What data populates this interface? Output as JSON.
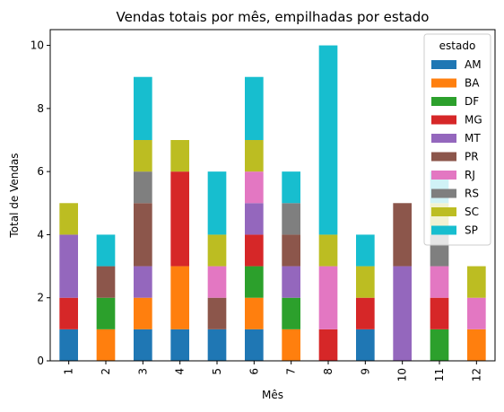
{
  "chart_data": {
    "type": "bar",
    "stacked": true,
    "title": "Vendas totais por mês, empilhadas por estado",
    "xlabel": "Mês",
    "ylabel": "Total de Vendas",
    "ylim": [
      0,
      10.5
    ],
    "yticks": [
      0,
      2,
      4,
      6,
      8,
      10
    ],
    "grid": false,
    "legend": {
      "title": "estado",
      "placement": "top-right"
    },
    "categories": [
      "1",
      "2",
      "3",
      "4",
      "5",
      "6",
      "7",
      "8",
      "9",
      "10",
      "11",
      "12"
    ],
    "series": [
      {
        "name": "AM",
        "color": "#1f77b4",
        "values": [
          1,
          0,
          1,
          1,
          1,
          1,
          0,
          0,
          1,
          0,
          0,
          0
        ]
      },
      {
        "name": "BA",
        "color": "#ff7f0e",
        "values": [
          0,
          1,
          1,
          2,
          0,
          1,
          1,
          0,
          0,
          0,
          0,
          1
        ]
      },
      {
        "name": "DF",
        "color": "#2ca02c",
        "values": [
          0,
          1,
          0,
          0,
          0,
          1,
          1,
          0,
          0,
          0,
          1,
          0
        ]
      },
      {
        "name": "MG",
        "color": "#d62728",
        "values": [
          1,
          0,
          0,
          3,
          0,
          1,
          0,
          1,
          1,
          0,
          1,
          0
        ]
      },
      {
        "name": "MT",
        "color": "#9467bd",
        "values": [
          2,
          0,
          1,
          0,
          0,
          1,
          1,
          0,
          0,
          3,
          0,
          0
        ]
      },
      {
        "name": "PR",
        "color": "#8c564b",
        "values": [
          0,
          1,
          2,
          0,
          1,
          0,
          1,
          0,
          0,
          2,
          0,
          0
        ]
      },
      {
        "name": "RJ",
        "color": "#e377c2",
        "values": [
          0,
          0,
          0,
          0,
          1,
          1,
          0,
          2,
          0,
          0,
          1,
          1
        ]
      },
      {
        "name": "RS",
        "color": "#7f7f7f",
        "values": [
          0,
          0,
          1,
          0,
          0,
          0,
          1,
          0,
          0,
          0,
          1,
          0
        ]
      },
      {
        "name": "SC",
        "color": "#bcbd22",
        "values": [
          1,
          0,
          1,
          1,
          1,
          1,
          0,
          1,
          1,
          0,
          1,
          1
        ]
      },
      {
        "name": "SP",
        "color": "#17becf",
        "values": [
          0,
          1,
          2,
          0,
          2,
          2,
          1,
          6,
          1,
          0,
          1,
          0
        ]
      }
    ]
  }
}
